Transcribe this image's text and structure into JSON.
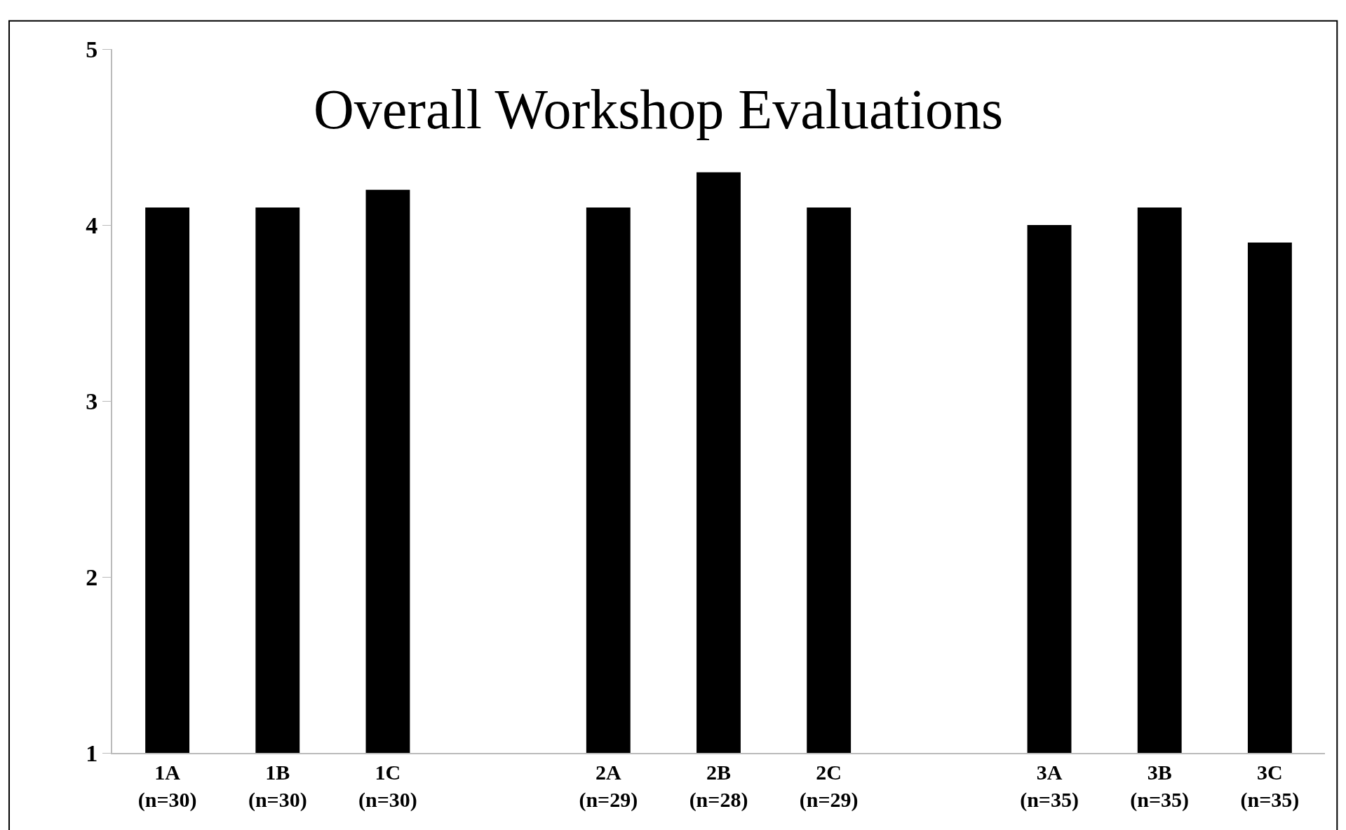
{
  "chart_data": {
    "type": "bar",
    "title": "Overall Workshop Evaluations",
    "categories": [
      "1A\n(n=30)",
      "1B\n(n=30)",
      "1C\n(n=30)",
      null,
      "2A\n(n=29)",
      "2B\n(n=28)",
      "2C\n(n=29)",
      null,
      "3A\n(n=35)",
      "3B\n(n=35)",
      "3C\n(n=35)"
    ],
    "values": [
      4.1,
      4.1,
      4.2,
      null,
      4.1,
      4.3,
      4.1,
      null,
      4.0,
      4.1,
      3.9
    ],
    "color": "#000000",
    "ylim": [
      1,
      5
    ],
    "yticks": [
      1,
      2,
      3,
      4,
      5
    ]
  }
}
